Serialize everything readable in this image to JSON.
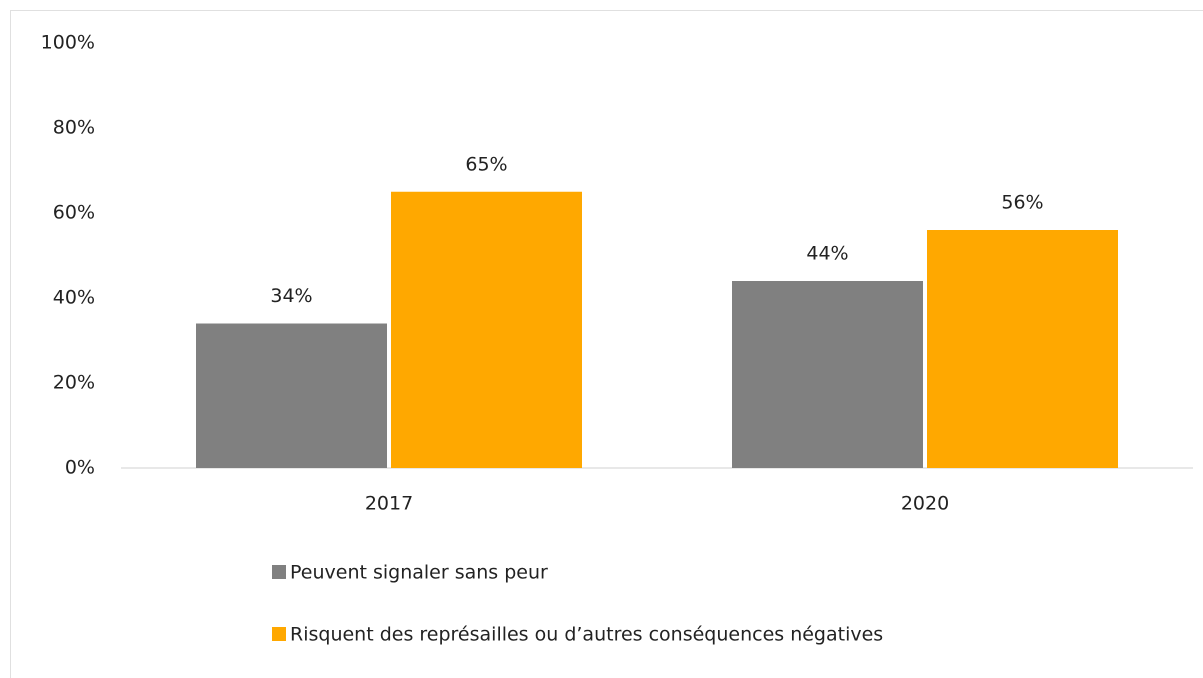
{
  "chart_data": {
    "type": "bar",
    "categories": [
      "2017",
      "2020"
    ],
    "series": [
      {
        "name": "Peuvent signaler sans peur",
        "color": "#808080",
        "values": [
          34,
          44
        ],
        "value_labels": [
          "34%",
          "44%"
        ]
      },
      {
        "name": "Risquent des représailles ou d’autres conséquences négatives",
        "color": "#ffa800",
        "values": [
          65,
          56
        ],
        "value_labels": [
          "65%",
          "56%"
        ]
      }
    ],
    "ylim": [
      0,
      100
    ],
    "yticks": [
      {
        "value": 0,
        "label": "0%"
      },
      {
        "value": 20,
        "label": "20%"
      },
      {
        "value": 40,
        "label": "40%"
      },
      {
        "value": 60,
        "label": "60%"
      },
      {
        "value": 80,
        "label": "80%"
      },
      {
        "value": 100,
        "label": "100%"
      }
    ],
    "grid": false,
    "legend": "bottom"
  }
}
